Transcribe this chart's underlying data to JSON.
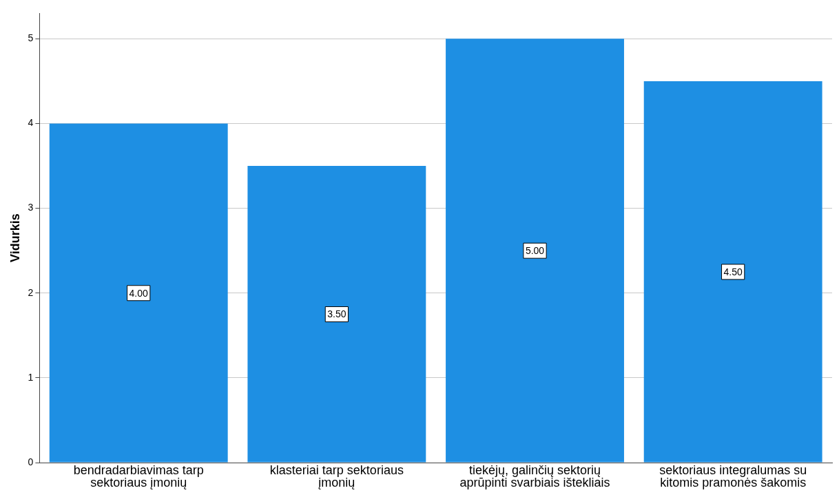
{
  "chart_data": {
    "type": "bar",
    "ylabel": "Vidurkis",
    "categories": [
      "bendradarbiavimas tarp sektoriaus įmonių",
      "klasteriai tarp sektoriaus įmonių",
      "tiekėjų, galinčių sektorių aprūpinti svarbiais ištekliais",
      "sektoriaus integralumas su kitomis pramonės šakomis"
    ],
    "values": [
      4,
      3.5,
      5,
      4.5
    ],
    "value_labels": [
      "4.00",
      "3.50",
      "5.00",
      "4.50"
    ],
    "color": "#1e8fe3",
    "ylim": [
      0,
      5.3
    ],
    "yticks": [
      0,
      1,
      2,
      3,
      4,
      5
    ],
    "grid": "y",
    "legend": false
  }
}
